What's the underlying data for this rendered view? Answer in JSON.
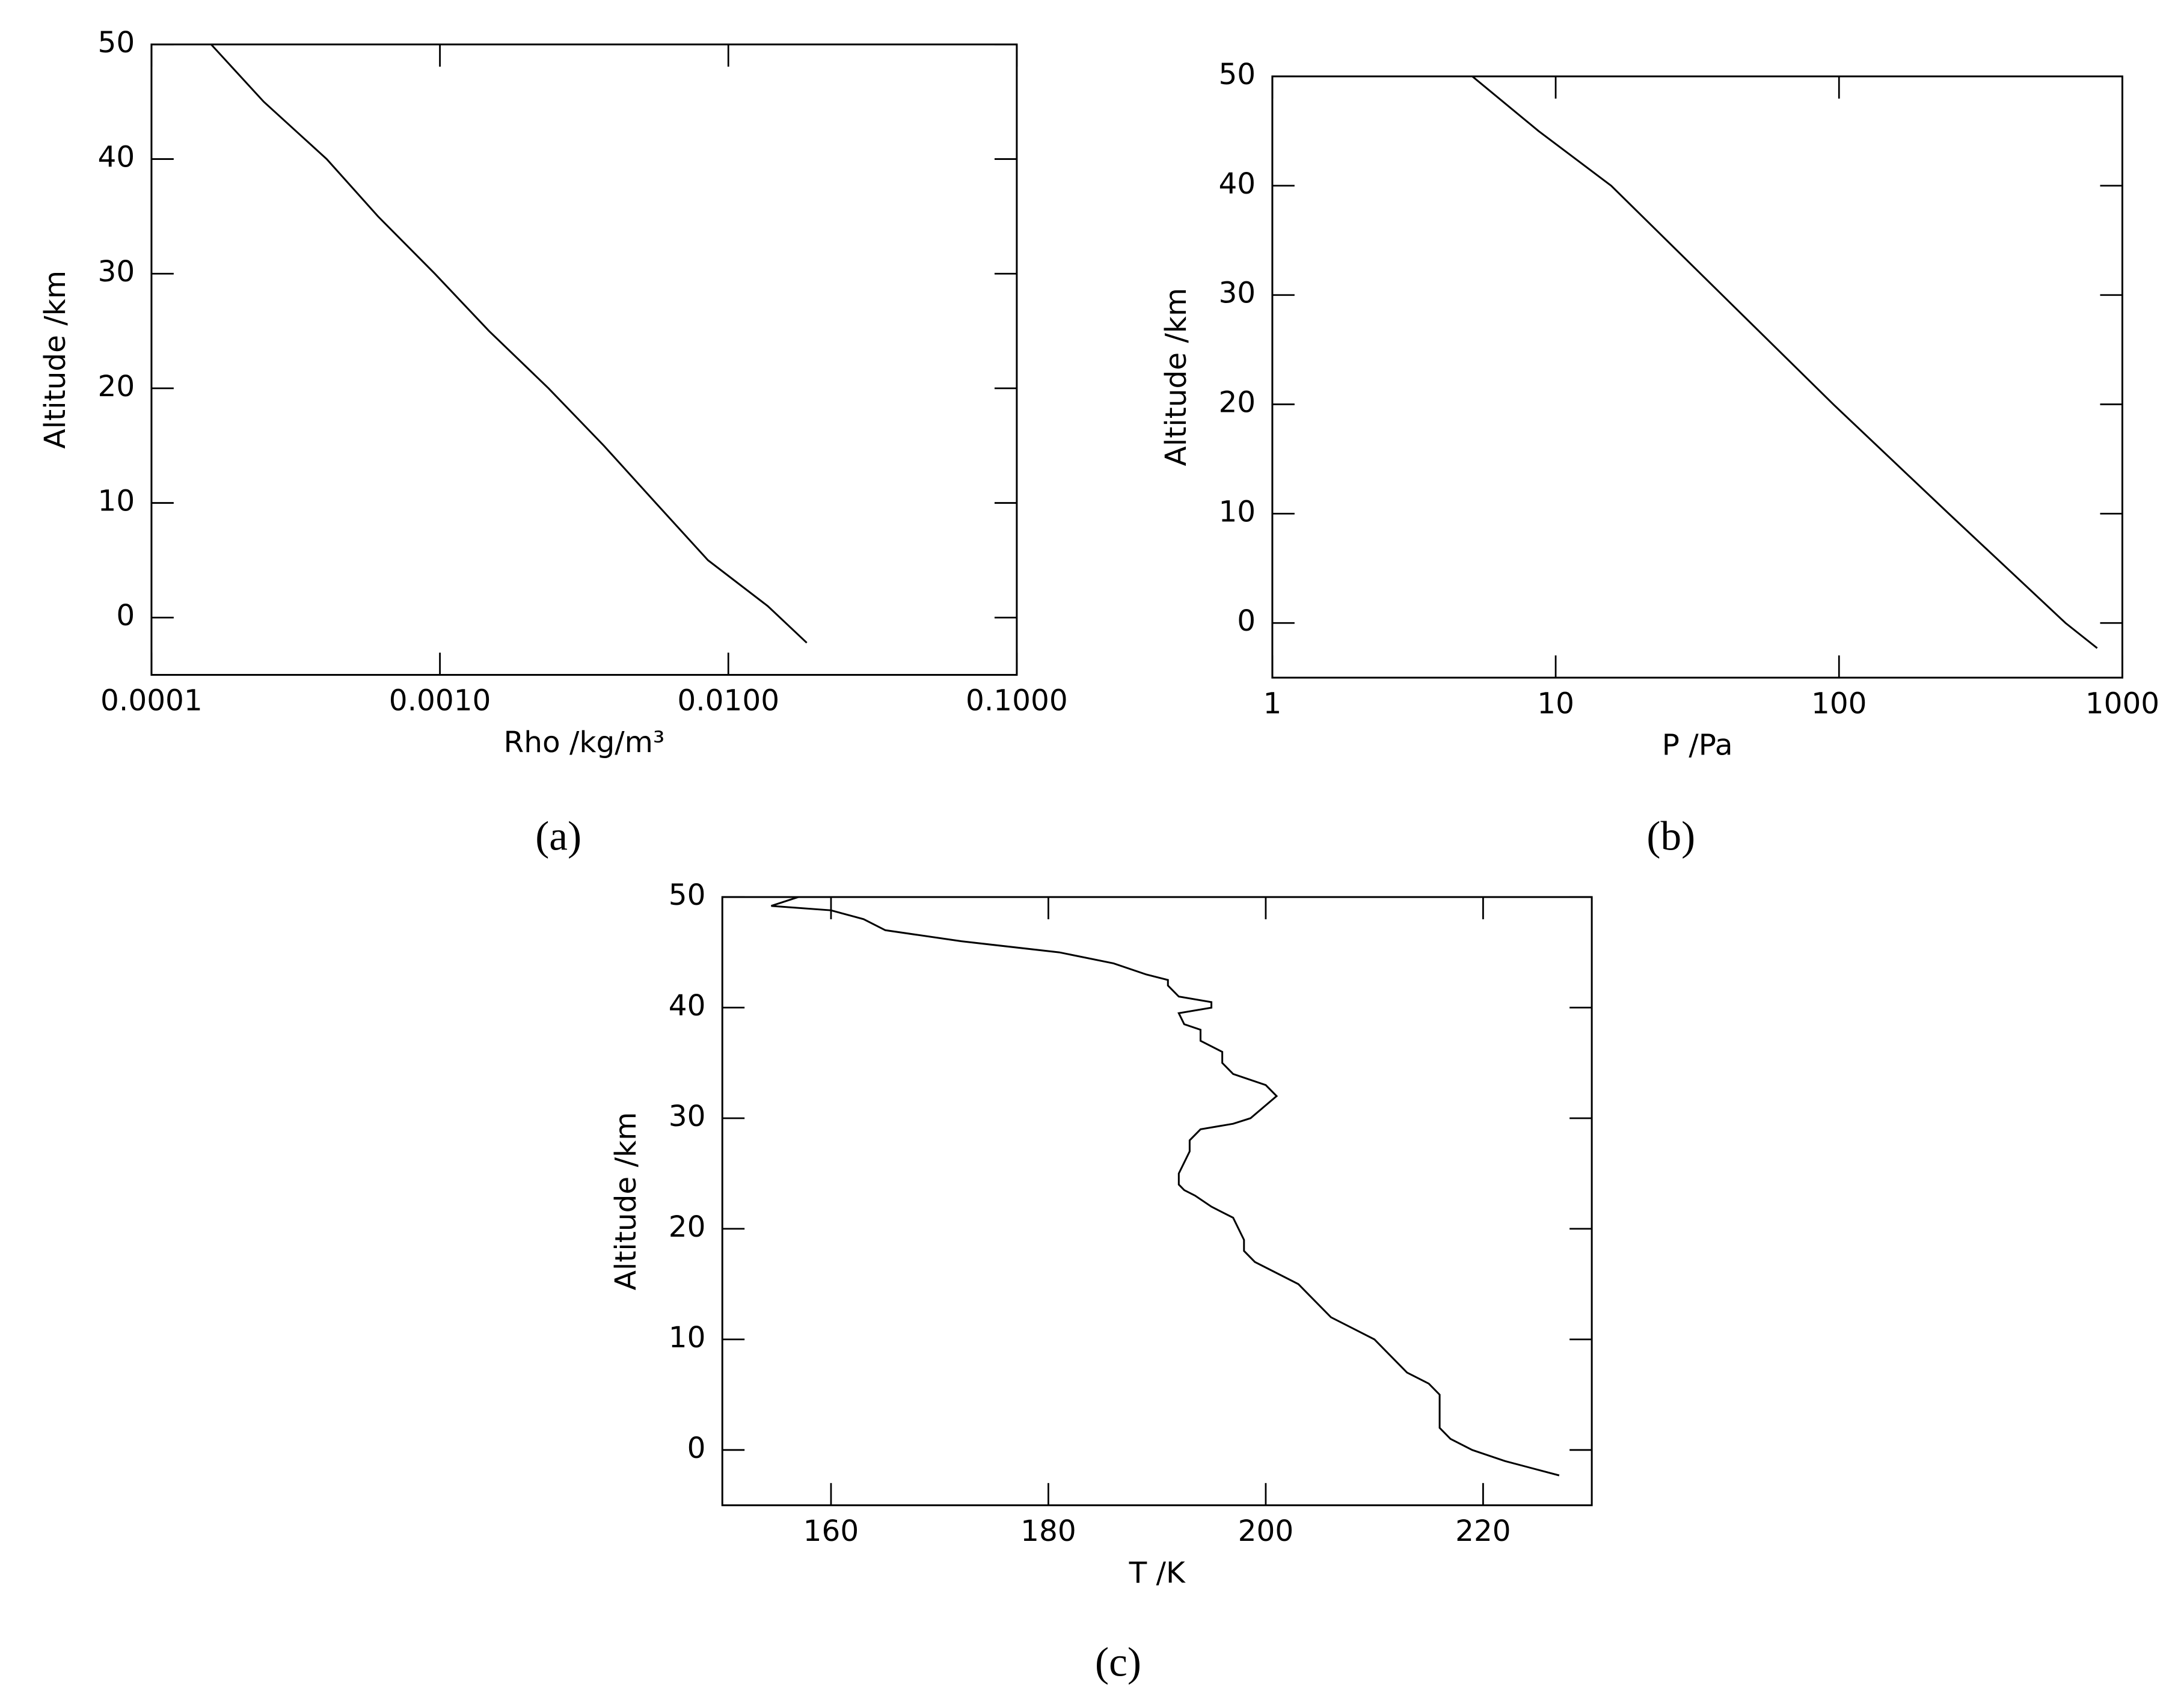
{
  "chart_data": [
    {
      "type": "line",
      "panel": "(a)",
      "xlabel": "Rho /kg/m³",
      "ylabel": "Altitude /km",
      "xscale": "log",
      "color": "#000000",
      "xlim": [
        0.0001,
        0.1
      ],
      "xticks": [
        {
          "value": 0.0001,
          "label": "0.0001"
        },
        {
          "value": 0.001,
          "label": "0.0010"
        },
        {
          "value": 0.01,
          "label": "0.0100"
        },
        {
          "value": 0.1,
          "label": "0.1000"
        }
      ],
      "ylim": [
        -5,
        50
      ],
      "yticks": [
        0,
        10,
        20,
        30,
        40,
        50
      ],
      "x": [
        0.000161,
        0.000245,
        0.000405,
        0.00061,
        0.00096,
        0.00148,
        0.00238,
        0.0037,
        0.0056,
        0.0085,
        0.0137,
        0.0187
      ],
      "values": [
        50,
        45,
        40,
        35,
        30,
        25,
        20,
        15,
        10,
        5,
        1,
        -2.2
      ]
    },
    {
      "type": "line",
      "panel": "(b)",
      "xlabel": "P /Pa",
      "ylabel": "Altitude /km",
      "xscale": "log",
      "color": "#000000",
      "xlim": [
        1,
        1000
      ],
      "xticks": [
        1,
        10,
        100,
        1000
      ],
      "ylim": [
        -5,
        50
      ],
      "yticks": [
        0,
        10,
        20,
        30,
        40,
        50
      ],
      "x": [
        5.08,
        8.7,
        15.7,
        38.7,
        95.5,
        244,
        630,
        815
      ],
      "values": [
        50,
        45,
        40,
        30,
        20,
        10,
        0,
        -2.3
      ]
    },
    {
      "type": "line",
      "panel": "(c)",
      "xlabel": "T /K",
      "ylabel": "Altitude /km",
      "xscale": "linear",
      "color": "#000000",
      "xlim": [
        150,
        230
      ],
      "xticks": [
        160,
        180,
        200,
        220
      ],
      "ylim": [
        -5,
        50
      ],
      "yticks": [
        0,
        10,
        20,
        30,
        40,
        50
      ],
      "x": [
        157,
        154.5,
        160,
        163,
        165,
        172,
        181,
        186,
        189,
        191,
        191,
        192,
        195,
        195,
        192,
        192.5,
        194,
        194,
        196,
        196,
        197,
        200,
        201,
        198.6,
        197,
        194,
        193,
        193,
        192.5,
        192,
        192,
        192.5,
        193.5,
        195,
        197,
        197.5,
        198,
        198,
        199,
        201,
        203,
        204,
        205,
        206,
        208,
        210,
        211,
        212,
        213,
        215,
        216,
        216,
        216,
        216,
        217,
        219,
        222,
        227
      ],
      "values": [
        50,
        49.2,
        48.8,
        48,
        47,
        46,
        45,
        44,
        43,
        42.5,
        42,
        41,
        40.5,
        40,
        39.5,
        38.5,
        38,
        37,
        36,
        35,
        34,
        33,
        32,
        30,
        29.5,
        29,
        28,
        27,
        26,
        25,
        24,
        23.5,
        23,
        22,
        21,
        20,
        19,
        18,
        17,
        16,
        15,
        14,
        13,
        12,
        11,
        10,
        9,
        8,
        7,
        6,
        5,
        4,
        3,
        2,
        1,
        0,
        -1,
        -2.3
      ]
    }
  ]
}
